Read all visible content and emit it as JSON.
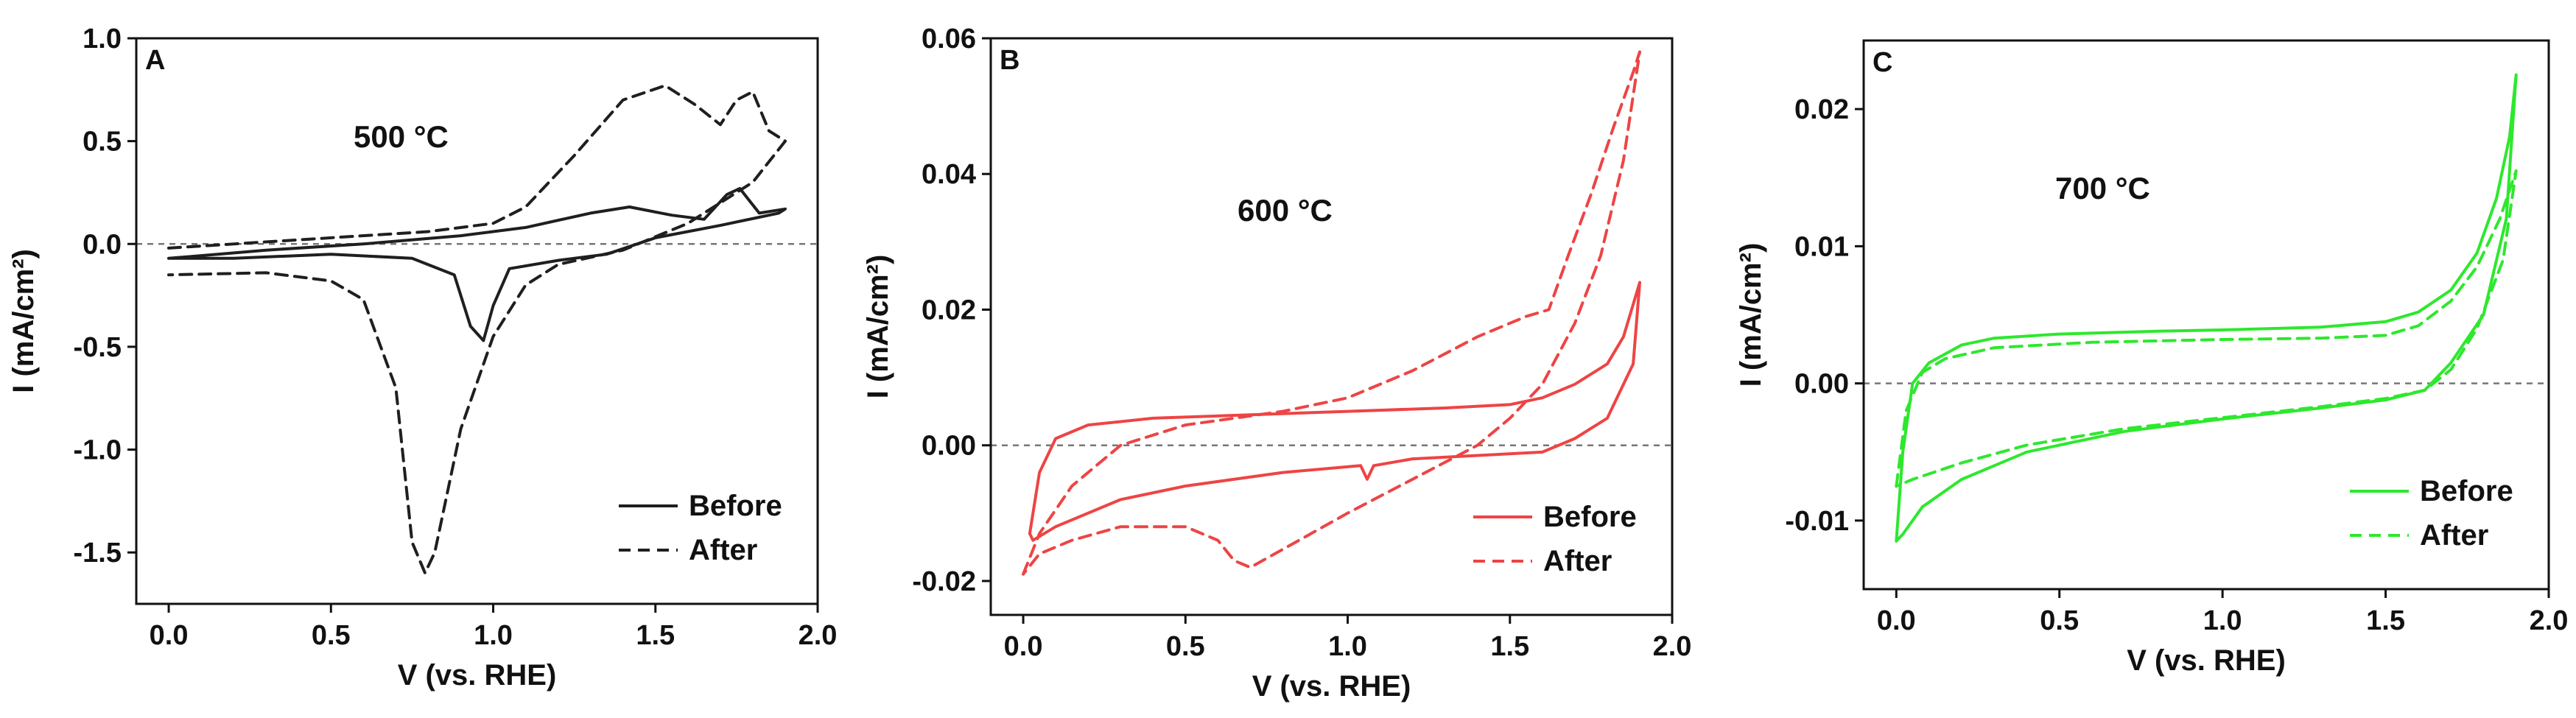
{
  "chart_data": [
    {
      "type": "line",
      "panel": "A",
      "annotation": "500 °C",
      "xlabel": "V (vs. RHE)",
      "ylabel": "I (mA/cm²)",
      "xlim": [
        -0.1,
        2.0
      ],
      "ylim": [
        -1.75,
        1.0
      ],
      "xticks": [
        0.0,
        0.5,
        1.0,
        1.5,
        2.0
      ],
      "xtick_labels": [
        "0.0",
        "0.5",
        "1.0",
        "1.5",
        "2.0"
      ],
      "yticks": [
        1.0,
        0.5,
        0.0,
        -0.5,
        -1.0,
        -1.5
      ],
      "ytick_labels": [
        "1.0",
        "0.5",
        "0.0",
        "-0.5",
        "-1.0",
        "-1.5"
      ],
      "legend_position": "bottom-right",
      "color": "#1f1f1f",
      "series": [
        {
          "name": "Before",
          "dash": "solid",
          "x": [
            0.0,
            0.3,
            0.6,
            0.9,
            1.1,
            1.3,
            1.42,
            1.55,
            1.65,
            1.72,
            1.76,
            1.82,
            1.9,
            1.88,
            1.7,
            1.5,
            1.35,
            1.2,
            1.05,
            1.0,
            0.97,
            0.93,
            0.88,
            0.75,
            0.5,
            0.2,
            0.03,
            0.0
          ],
          "y": [
            -0.07,
            -0.03,
            0.0,
            0.04,
            0.08,
            0.15,
            0.18,
            0.14,
            0.12,
            0.24,
            0.27,
            0.15,
            0.17,
            0.15,
            0.09,
            0.03,
            -0.05,
            -0.08,
            -0.12,
            -0.3,
            -0.47,
            -0.4,
            -0.15,
            -0.07,
            -0.05,
            -0.07,
            -0.07,
            -0.07
          ]
        },
        {
          "name": "After",
          "dash": "dashed",
          "x": [
            0.0,
            0.4,
            0.8,
            1.0,
            1.1,
            1.25,
            1.4,
            1.53,
            1.62,
            1.7,
            1.75,
            1.8,
            1.85,
            1.9,
            1.8,
            1.6,
            1.4,
            1.2,
            1.1,
            1.0,
            0.9,
            0.82,
            0.79,
            0.75,
            0.7,
            0.6,
            0.5,
            0.3,
            0.0
          ],
          "y": [
            -0.02,
            0.02,
            0.06,
            0.1,
            0.18,
            0.43,
            0.7,
            0.77,
            0.68,
            0.58,
            0.7,
            0.74,
            0.55,
            0.5,
            0.3,
            0.1,
            -0.03,
            -0.1,
            -0.2,
            -0.45,
            -0.9,
            -1.5,
            -1.6,
            -1.45,
            -0.7,
            -0.27,
            -0.18,
            -0.14,
            -0.15
          ]
        }
      ]
    },
    {
      "type": "line",
      "panel": "B",
      "annotation": "600 °C",
      "xlabel": "V (vs. RHE)",
      "ylabel": "I (mA/cm²)",
      "xlim": [
        -0.1,
        2.0
      ],
      "ylim": [
        -0.025,
        0.06
      ],
      "xticks": [
        0.0,
        0.5,
        1.0,
        1.5,
        2.0
      ],
      "xtick_labels": [
        "0.0",
        "0.5",
        "1.0",
        "1.5",
        "2.0"
      ],
      "yticks": [
        0.06,
        0.04,
        0.02,
        0.0,
        -0.02
      ],
      "ytick_labels": [
        "0.06",
        "0.04",
        "0.02",
        "0.00",
        "-0.02"
      ],
      "legend_position": "bottom-right",
      "color": "#ee4444",
      "series": [
        {
          "name": "Before",
          "dash": "solid",
          "x": [
            0.02,
            0.05,
            0.1,
            0.2,
            0.4,
            0.7,
            1.0,
            1.3,
            1.5,
            1.6,
            1.7,
            1.8,
            1.85,
            1.9,
            1.88,
            1.8,
            1.7,
            1.6,
            1.4,
            1.2,
            1.08,
            1.06,
            1.04,
            0.8,
            0.5,
            0.3,
            0.1,
            0.03,
            0.02
          ],
          "y": [
            -0.013,
            -0.004,
            0.001,
            0.003,
            0.004,
            0.0045,
            0.005,
            0.0055,
            0.006,
            0.007,
            0.009,
            0.012,
            0.016,
            0.024,
            0.012,
            0.004,
            0.001,
            -0.001,
            -0.0015,
            -0.002,
            -0.003,
            -0.005,
            -0.003,
            -0.004,
            -0.006,
            -0.008,
            -0.012,
            -0.014,
            -0.013
          ]
        },
        {
          "name": "After",
          "dash": "dashed",
          "x": [
            0.0,
            0.05,
            0.15,
            0.3,
            0.5,
            0.8,
            1.0,
            1.2,
            1.4,
            1.55,
            1.62,
            1.68,
            1.75,
            1.82,
            1.88,
            1.9,
            1.85,
            1.78,
            1.7,
            1.6,
            1.5,
            1.4,
            1.2,
            1.0,
            0.85,
            0.7,
            0.65,
            0.6,
            0.5,
            0.3,
            0.15,
            0.05,
            0.0
          ],
          "y": [
            -0.019,
            -0.013,
            -0.006,
            0.0,
            0.003,
            0.005,
            0.007,
            0.011,
            0.016,
            0.019,
            0.02,
            0.028,
            0.037,
            0.047,
            0.055,
            0.058,
            0.042,
            0.028,
            0.018,
            0.009,
            0.004,
            0.0,
            -0.005,
            -0.01,
            -0.014,
            -0.018,
            -0.017,
            -0.014,
            -0.012,
            -0.012,
            -0.014,
            -0.016,
            -0.019
          ]
        }
      ]
    },
    {
      "type": "line",
      "panel": "C",
      "annotation": "700 °C",
      "xlabel": "V (vs. RHE)",
      "ylabel": "I (mA/cm²)",
      "xlim": [
        -0.1,
        2.0
      ],
      "ylim": [
        -0.015,
        0.025
      ],
      "xticks": [
        0.0,
        0.5,
        1.0,
        1.5,
        2.0
      ],
      "xtick_labels": [
        "0.0",
        "0.5",
        "1.0",
        "1.5",
        "2.0"
      ],
      "yticks": [
        0.02,
        0.01,
        0.0,
        -0.01
      ],
      "ytick_labels": [
        "0.02",
        "0.01",
        "0.00",
        "-0.01"
      ],
      "legend_position": "bottom-right",
      "color": "#2de82d",
      "series": [
        {
          "name": "Before",
          "dash": "solid",
          "x": [
            0.0,
            0.02,
            0.05,
            0.1,
            0.2,
            0.3,
            0.5,
            0.8,
            1.0,
            1.3,
            1.5,
            1.6,
            1.7,
            1.78,
            1.84,
            1.88,
            1.9,
            1.87,
            1.8,
            1.7,
            1.62,
            1.5,
            1.3,
            1.0,
            0.7,
            0.4,
            0.2,
            0.08,
            0.02,
            0.0
          ],
          "y": [
            -0.0115,
            -0.005,
            0.0,
            0.0015,
            0.0028,
            0.0033,
            0.0036,
            0.0038,
            0.0039,
            0.0041,
            0.0045,
            0.0052,
            0.0068,
            0.0095,
            0.0135,
            0.018,
            0.0225,
            0.012,
            0.005,
            0.0015,
            -0.0005,
            -0.0012,
            -0.0018,
            -0.0026,
            -0.0035,
            -0.005,
            -0.007,
            -0.009,
            -0.011,
            -0.0115
          ]
        },
        {
          "name": "After",
          "dash": "dashed",
          "x": [
            0.0,
            0.03,
            0.08,
            0.15,
            0.3,
            0.6,
            1.0,
            1.3,
            1.5,
            1.6,
            1.7,
            1.78,
            1.85,
            1.9,
            1.86,
            1.78,
            1.7,
            1.62,
            1.5,
            1.3,
            1.0,
            0.7,
            0.4,
            0.2,
            0.05,
            0.0
          ],
          "y": [
            -0.0075,
            -0.002,
            0.0008,
            0.0018,
            0.0026,
            0.003,
            0.0032,
            0.0033,
            0.0035,
            0.0042,
            0.006,
            0.0085,
            0.012,
            0.0155,
            0.009,
            0.004,
            0.001,
            -0.0005,
            -0.0011,
            -0.0017,
            -0.0025,
            -0.0033,
            -0.0045,
            -0.0058,
            -0.007,
            -0.0075
          ]
        }
      ]
    }
  ]
}
